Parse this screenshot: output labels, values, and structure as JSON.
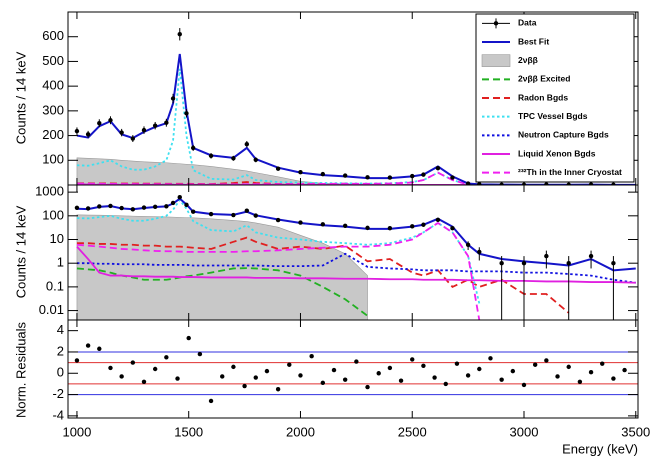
{
  "chart_data": [
    {
      "type": "line",
      "ylabel": "Counts / 14 keV",
      "ylim": [
        0,
        700
      ],
      "yticks": [
        100,
        200,
        300,
        400,
        500,
        600
      ],
      "legend": "upper right",
      "x": [
        1000,
        1050,
        1100,
        1150,
        1200,
        1250,
        1300,
        1350,
        1400,
        1430,
        1460,
        1490,
        1520,
        1600,
        1700,
        1760,
        1800,
        1900,
        2000,
        2100,
        2200,
        2300,
        2400,
        2500,
        2550,
        2615,
        2680,
        2750,
        2800,
        2900,
        3000,
        3100,
        3200,
        3300,
        3400,
        3500
      ],
      "series": [
        {
          "name": "2νββ",
          "color": "#c8c8c8",
          "style": "fill",
          "values": [
            110,
            108,
            106,
            104,
            100,
            97,
            94,
            92,
            90,
            88,
            86,
            84,
            82,
            75,
            64,
            57,
            50,
            33,
            15,
            7,
            2.5,
            0.3,
            null,
            null,
            null,
            null,
            null,
            null,
            null,
            null,
            null,
            null,
            null,
            null,
            null,
            null
          ]
        },
        {
          "name": "2νββ Excited",
          "color": "#22b022",
          "style": "dashed",
          "values": [
            0.6,
            0.55,
            0.5,
            0.4,
            0.3,
            0.25,
            0.2,
            0.2,
            0.2,
            0.22,
            0.25,
            0.28,
            0.3,
            0.4,
            0.6,
            0.62,
            0.6,
            0.5,
            0.3,
            0.1,
            0.03,
            0.006,
            null,
            null,
            null,
            null,
            null,
            null,
            null,
            null,
            null,
            null,
            null,
            null,
            null,
            null
          ]
        },
        {
          "name": "Radon Bgds",
          "color": "#e02020",
          "style": "dashed",
          "values": [
            7,
            7,
            6.5,
            6.5,
            6,
            6,
            5.5,
            5.5,
            5,
            5,
            5,
            4.8,
            4.5,
            4,
            8,
            12,
            8,
            4,
            5,
            4,
            5.5,
            1.2,
            1.5,
            0.4,
            0.3,
            0.5,
            0.1,
            0.2,
            0.1,
            0.2,
            0.05,
            0.05,
            0.008,
            null,
            null,
            null
          ]
        },
        {
          "name": "TPC Vessel Bgds",
          "color": "#3ee0f0",
          "style": "dotted",
          "values": [
            80,
            78,
            88,
            100,
            75,
            62,
            62,
            75,
            100,
            180,
            470,
            200,
            60,
            25,
            22,
            40,
            20,
            12,
            10,
            8,
            7,
            6,
            7,
            12,
            20,
            50,
            20,
            2,
            0.02,
            null,
            null,
            null,
            null,
            null,
            null,
            null
          ]
        },
        {
          "name": "Neutron Capture Bgds",
          "color": "#1010e0",
          "style": "dotted",
          "values": [
            1,
            1,
            0.95,
            0.95,
            0.9,
            0.9,
            0.9,
            0.85,
            0.85,
            0.85,
            0.85,
            0.85,
            0.8,
            0.8,
            0.8,
            0.8,
            0.8,
            0.75,
            0.75,
            0.8,
            2.5,
            0.7,
            0.6,
            0.55,
            0.5,
            0.5,
            0.5,
            0.45,
            0.45,
            0.45,
            0.4,
            0.4,
            0.35,
            0.3,
            0.2,
            0.15
          ]
        },
        {
          "name": "Liquid Xenon Bgds",
          "color": "#e020e0",
          "style": "solid",
          "values": [
            5,
            1.5,
            0.4,
            0.3,
            0.3,
            0.28,
            0.28,
            0.27,
            0.27,
            0.27,
            0.26,
            0.26,
            0.26,
            0.25,
            0.25,
            0.25,
            0.24,
            0.24,
            0.23,
            0.23,
            0.22,
            0.22,
            0.21,
            0.21,
            0.2,
            0.2,
            0.2,
            0.19,
            0.19,
            0.18,
            0.18,
            0.17,
            0.17,
            0.16,
            0.16,
            0.15
          ]
        },
        {
          "name": "²³²Th in the Inner Cryostat",
          "color": "#f020f0",
          "style": "dashed",
          "values": [
            6,
            5.5,
            5,
            4.5,
            4,
            3.8,
            3.5,
            3.3,
            3.2,
            3.2,
            3.1,
            3,
            3,
            3,
            3,
            3.2,
            3.2,
            3.5,
            4,
            4.5,
            5,
            5,
            6,
            10,
            20,
            50,
            20,
            2,
            0.004,
            null,
            null,
            null,
            null,
            null,
            null,
            null
          ]
        },
        {
          "name": "Best Fit",
          "color": "#1414c8",
          "style": "solid",
          "values": [
            200,
            192,
            238,
            258,
            205,
            190,
            215,
            235,
            250,
            330,
            530,
            300,
            150,
            120,
            110,
            150,
            105,
            70,
            50,
            40,
            35,
            28,
            28,
            35,
            42,
            75,
            35,
            6,
            2.5,
            1.5,
            1.2,
            1,
            0.8,
            1.5,
            0.5,
            0.6
          ]
        },
        {
          "name": "Data",
          "color": "#000000",
          "style": "marker",
          "values": [
            218,
            205,
            250,
            262,
            212,
            188,
            222,
            240,
            252,
            350,
            610,
            290,
            150,
            118,
            108,
            165,
            102,
            66,
            52,
            44,
            38,
            31,
            30,
            36,
            42,
            68,
            30,
            6,
            3,
            1,
            1,
            2,
            1,
            2,
            1,
            null
          ],
          "errors": [
            15,
            14,
            16,
            16,
            15,
            14,
            15,
            15,
            16,
            19,
            25,
            17,
            12,
            11,
            10,
            13,
            10,
            8,
            7,
            7,
            6,
            6,
            5,
            6,
            6,
            8,
            5,
            2.4,
            1.7,
            1,
            1,
            1.4,
            1,
            1.4,
            1,
            null
          ]
        }
      ]
    },
    {
      "type": "line",
      "ylabel": "Counts / 14 keV",
      "log": true,
      "ylim": [
        0.004,
        2000
      ],
      "yticks": [
        0.01,
        0.1,
        1,
        10,
        100,
        1000
      ]
    },
    {
      "type": "scatter",
      "ylabel": "Norm. Residuals",
      "xlabel": "Energy (keV)",
      "xlim": [
        960,
        3510
      ],
      "xticks": [
        1000,
        1500,
        2000,
        2500,
        3000,
        3500
      ],
      "ylim": [
        -4.2,
        5
      ],
      "yticks": [
        -4,
        -2,
        0,
        2,
        4
      ],
      "color": "#000000",
      "reference_lines": [
        {
          "value": 1,
          "color": "#e03030"
        },
        {
          "value": -1,
          "color": "#e03030"
        },
        {
          "value": 2,
          "color": "#3030e0"
        },
        {
          "value": -2,
          "color": "#3030e0"
        }
      ],
      "x": [
        1000,
        1050,
        1100,
        1150,
        1200,
        1250,
        1300,
        1350,
        1400,
        1450,
        1500,
        1550,
        1600,
        1650,
        1700,
        1750,
        1800,
        1850,
        1900,
        1950,
        2000,
        2050,
        2100,
        2150,
        2200,
        2250,
        2300,
        2350,
        2400,
        2450,
        2500,
        2550,
        2600,
        2650,
        2700,
        2750,
        2800,
        2850,
        2900,
        2950,
        3000,
        3050,
        3100,
        3150,
        3200,
        3250,
        3300,
        3350,
        3400,
        3450
      ],
      "values": [
        1.2,
        2.6,
        2.3,
        0.5,
        -0.3,
        1.0,
        -0.8,
        0.4,
        1.5,
        -0.5,
        3.3,
        1.8,
        -2.6,
        -0.3,
        0.6,
        -1.2,
        -0.4,
        0.2,
        -1.5,
        0.8,
        -0.2,
        1.6,
        -0.9,
        0.3,
        -0.6,
        1.1,
        -1.3,
        0.0,
        0.5,
        -0.7,
        1.3,
        0.7,
        -0.4,
        -1.0,
        0.9,
        -0.2,
        0.4,
        1.4,
        -0.6,
        0.2,
        -1.1,
        0.8,
        1.2,
        -0.3,
        0.6,
        -0.8,
        0.1,
        0.9,
        -0.5,
        0.3
      ]
    }
  ]
}
